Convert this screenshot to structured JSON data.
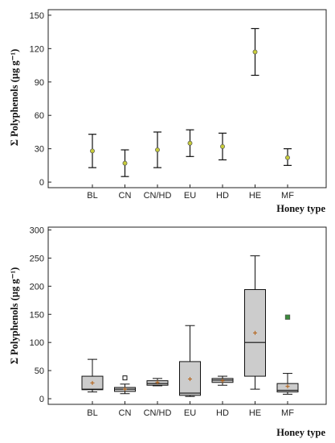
{
  "chart_data": [
    {
      "type": "errorbar",
      "title": "",
      "xlabel": "Honey type",
      "ylabel": "Σ Polyphenols (µg g⁻¹)",
      "ylim": [
        -5,
        155
      ],
      "yticks": [
        0,
        30,
        60,
        90,
        120,
        150
      ],
      "categories": [
        "BL",
        "CN",
        "CN/HD",
        "EU",
        "HD",
        "HE",
        "MF"
      ],
      "means": [
        28,
        17,
        29,
        35,
        32,
        117,
        22
      ],
      "upper": [
        43,
        29,
        45,
        47,
        44,
        138,
        30
      ],
      "lower": [
        13,
        5,
        13,
        23,
        20,
        96,
        15
      ],
      "marker_color": "#c8cc3a",
      "grid": false
    },
    {
      "type": "boxplot",
      "title": "",
      "xlabel": "Honey type",
      "ylabel": "Σ Polyphenols (µg g⁻¹)",
      "ylim": [
        -10,
        305
      ],
      "yticks": [
        0,
        50,
        100,
        150,
        200,
        250,
        300
      ],
      "categories": [
        "BL",
        "CN",
        "CN/HD",
        "EU",
        "HD",
        "HE",
        "MF"
      ],
      "boxes": [
        {
          "whisker_low": 12,
          "q1": 16,
          "median": 17,
          "q3": 40,
          "whisker_high": 70,
          "mean": 28
        },
        {
          "whisker_low": 9,
          "q1": 13,
          "median": 17,
          "q3": 20,
          "whisker_high": 26,
          "mean": 17,
          "outliers": [
            {
              "value": 37,
              "style": "open"
            }
          ]
        },
        {
          "whisker_low": 23,
          "q1": 24,
          "median": 27,
          "q3": 32,
          "whisker_high": 36,
          "mean": 29
        },
        {
          "whisker_low": 4,
          "q1": 6,
          "median": 10,
          "q3": 66,
          "whisker_high": 130,
          "mean": 35
        },
        {
          "whisker_low": 24,
          "q1": 29,
          "median": 33,
          "q3": 36,
          "whisker_high": 40,
          "mean": 32
        },
        {
          "whisker_low": 17,
          "q1": 40,
          "median": 100,
          "q3": 194,
          "whisker_high": 254,
          "mean": 117
        },
        {
          "whisker_low": 8,
          "q1": 12,
          "median": 15,
          "q3": 27,
          "whisker_high": 45,
          "mean": 22,
          "outliers": [
            {
              "value": 145,
              "style": "filled"
            }
          ]
        }
      ],
      "box_color": "#cccccc",
      "mean_marker_color": "#b5651d",
      "outlier_color": "#3a8a3a",
      "grid": false
    }
  ]
}
